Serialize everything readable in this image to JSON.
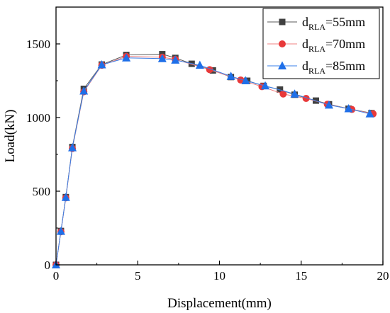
{
  "chart_data": {
    "type": "line",
    "xlabel": "Displacement(mm)",
    "ylabel": "Load(kN)",
    "xlim": [
      0,
      20
    ],
    "ylim": [
      0,
      1750
    ],
    "xticks": [
      "0",
      "5",
      "10",
      "15",
      "20"
    ],
    "yticks": [
      "0",
      "500",
      "1000",
      "1500"
    ],
    "grid": false,
    "legend_position": "top-right",
    "series": [
      {
        "name_main": "d",
        "name_sub": "RLA",
        "name_tail": "=55mm",
        "color": "#404040",
        "line_color": "#5a5a5a",
        "marker": "square",
        "x": [
          0,
          0.3,
          0.6,
          1.0,
          1.7,
          2.8,
          4.3,
          6.5,
          7.3,
          8.3,
          9.6,
          10.7,
          11.7,
          12.7,
          13.7,
          14.6,
          15.9,
          16.7,
          17.9,
          19.3
        ],
        "y": [
          0,
          230,
          460,
          800,
          1195,
          1360,
          1425,
          1430,
          1405,
          1365,
          1320,
          1275,
          1250,
          1215,
          1190,
          1155,
          1115,
          1090,
          1060,
          1030
        ]
      },
      {
        "name_main": "d",
        "name_sub": "RLA",
        "name_tail": "=70mm",
        "color": "#e8393a",
        "line_color": "#f08080",
        "marker": "circle",
        "x": [
          0,
          0.3,
          0.6,
          1.0,
          1.7,
          2.8,
          4.3,
          6.5,
          7.3,
          9.4,
          11.3,
          12.6,
          13.9,
          15.3,
          16.6,
          18.1,
          19.4
        ],
        "y": [
          0,
          225,
          455,
          790,
          1175,
          1355,
          1415,
          1410,
          1395,
          1325,
          1255,
          1210,
          1160,
          1130,
          1090,
          1055,
          1025
        ]
      },
      {
        "name_main": "d",
        "name_sub": "RLA",
        "name_tail": "=85mm",
        "color": "#1f6fe8",
        "line_color": "#3a7fe8",
        "marker": "triangle",
        "x": [
          0,
          0.3,
          0.6,
          1.0,
          1.7,
          2.8,
          4.3,
          6.5,
          7.3,
          8.8,
          10.7,
          11.6,
          12.8,
          14.6,
          16.7,
          17.9,
          19.2
        ],
        "y": [
          0,
          228,
          458,
          795,
          1180,
          1358,
          1405,
          1400,
          1390,
          1355,
          1280,
          1250,
          1215,
          1160,
          1085,
          1060,
          1025
        ]
      }
    ]
  }
}
